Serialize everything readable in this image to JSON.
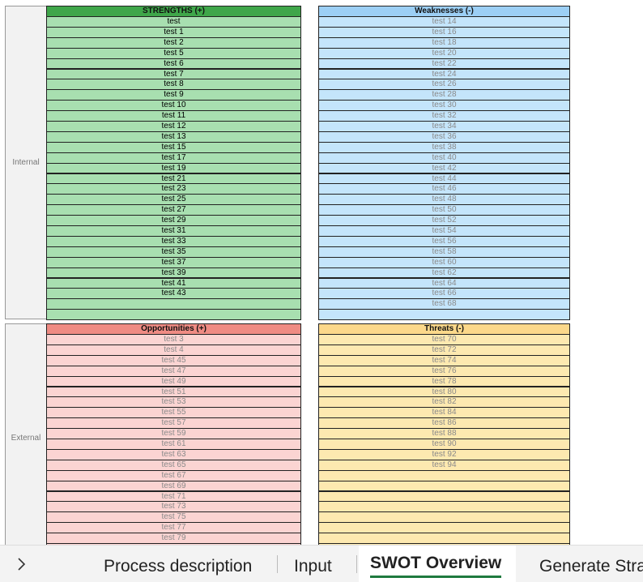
{
  "sections": [
    {
      "label": "Internal",
      "quadrants": [
        {
          "title": "STRENGTHS (+)",
          "header_color": "#3fa64a",
          "row_color": "#a8dfb0",
          "text_color": "#000000",
          "items": [
            "test",
            "test 1",
            "test 2",
            "test 5",
            "test 6",
            "test 7",
            "test 8",
            "test 9",
            "test 10",
            "test 11",
            "test 12",
            "test 13",
            "test 15",
            "test 17",
            "test 19",
            "test 21",
            "test 23",
            "test 25",
            "test 27",
            "test 29",
            "test 31",
            "test 33",
            "test 35",
            "test 37",
            "test 39",
            "test 41",
            "test 43"
          ]
        },
        {
          "title": "Weaknesses (-)",
          "header_color": "#9ccff5",
          "row_color": "#c4e5fb",
          "text_color": "#8a8a8a",
          "items": [
            "test 14",
            "test 16",
            "test 18",
            "test 20",
            "test 22",
            "test 24",
            "test 26",
            "test 28",
            "test 30",
            "test 32",
            "test 34",
            "test 36",
            "test 38",
            "test 40",
            "test 42",
            "test 44",
            "test 46",
            "test 48",
            "test 50",
            "test 52",
            "test 54",
            "test 56",
            "test 58",
            "test 60",
            "test 62",
            "test 64",
            "test 66",
            "test 68"
          ]
        }
      ]
    },
    {
      "label": "External",
      "quadrants": [
        {
          "title": "Opportunities (+)",
          "header_color": "#ef8b83",
          "row_color": "#fbd4d2",
          "text_color": "#8a8a8a",
          "items": [
            "test 3",
            "test 4",
            "test 45",
            "test 47",
            "test 49",
            "test 51",
            "test 53",
            "test 55",
            "test 57",
            "test 59",
            "test 61",
            "test 63",
            "test 65",
            "test 67",
            "test 69",
            "test 71",
            "test 73",
            "test 75",
            "test 77",
            "test 79"
          ]
        },
        {
          "title": "Threats (-)",
          "header_color": "#fcd88a",
          "row_color": "#fde9b0",
          "text_color": "#8a8a8a",
          "items": [
            "test 70",
            "test 72",
            "test 74",
            "test 76",
            "test 78",
            "test 80",
            "test 82",
            "test 84",
            "test 86",
            "test 88",
            "test 90",
            "test 92",
            "test 94"
          ]
        }
      ]
    }
  ],
  "tabs": [
    "Process description",
    "Input",
    "SWOT Overview",
    "Generate Stra"
  ],
  "active_tab": 2
}
